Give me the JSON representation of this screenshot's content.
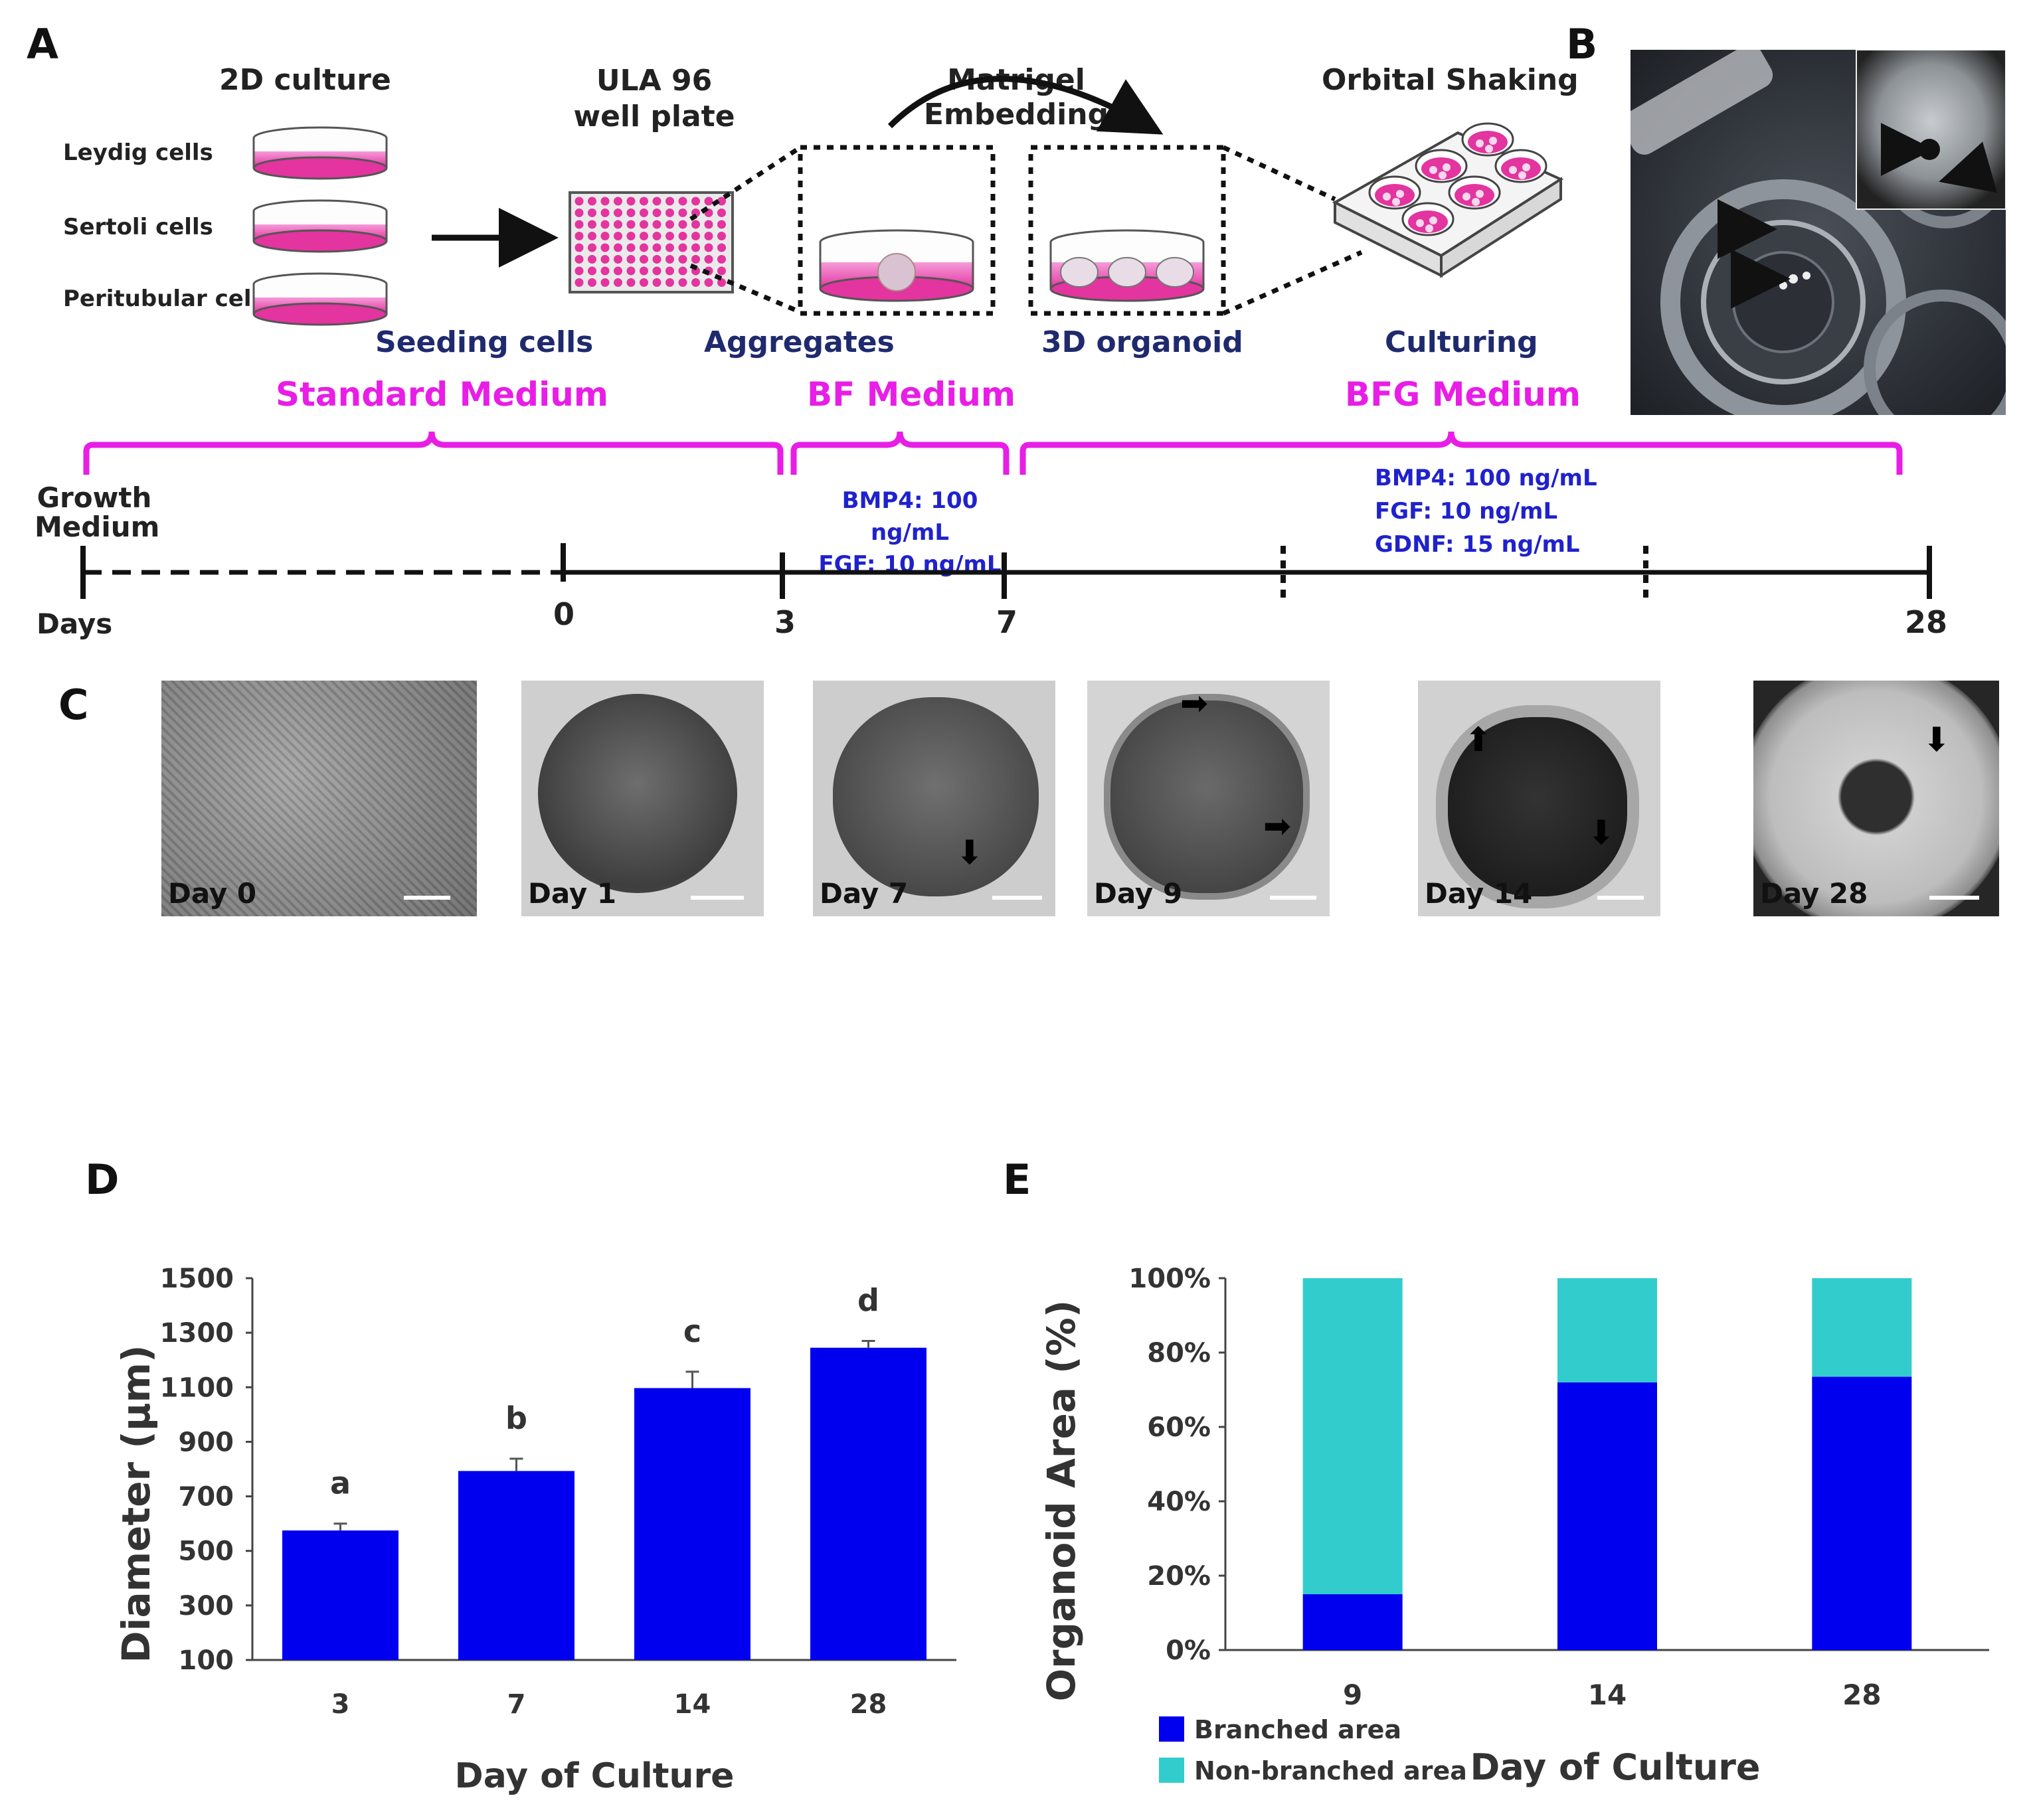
{
  "panels": {
    "a": "A",
    "b": "B",
    "c": "C",
    "d": "D",
    "e": "E"
  },
  "panel_a": {
    "culture_2d_title": "2D culture",
    "cells": [
      "Leydig cells",
      "Sertoli cells",
      "Peritubular cells"
    ],
    "plate_title": "ULA 96 well plate",
    "embedding_title": "Matrigel Embedding",
    "shaking_title": "Orbital Shaking",
    "stages": [
      "Seeding cells",
      "Aggregates",
      "3D organoid",
      "Culturing"
    ],
    "media": [
      "Standard Medium",
      "BF Medium",
      "BFG Medium"
    ],
    "bf_composition": [
      "BMP4: 100 ng/mL",
      "FGF: 10 ng/mL"
    ],
    "bfg_composition": [
      "BMP4: 100 ng/mL",
      "FGF: 10 ng/mL",
      "GDNF: 15 ng/mL"
    ],
    "growth_medium": "Growth Medium",
    "days_label": "Days",
    "day_ticks": [
      "0",
      "3",
      "7",
      "28"
    ]
  },
  "panel_c": {
    "days": [
      "Day 0",
      "Day 1",
      "Day 7",
      "Day 9",
      "Day 14",
      "Day 28"
    ]
  },
  "chart_data": [
    {
      "type": "bar",
      "categories": [
        "3",
        "7",
        "14",
        "28"
      ],
      "values": [
        575,
        793,
        1097,
        1245
      ],
      "errors": [
        25,
        45,
        60,
        25
      ],
      "letters": [
        "a",
        "b",
        "c",
        "d"
      ],
      "xlabel": "Day of Culture",
      "ylabel": "Diameter (μm)",
      "ylim": [
        100,
        1500
      ],
      "yticks": [
        "100",
        "300",
        "500",
        "700",
        "900",
        "1100",
        "1300",
        "1500"
      ],
      "color": "#0000ee"
    },
    {
      "type": "bar",
      "stacked": true,
      "categories": [
        "9",
        "14",
        "28"
      ],
      "series": [
        {
          "name": "Branched area",
          "values": [
            15,
            72,
            73.5
          ],
          "color": "#0000ee"
        },
        {
          "name": "Non-branched area",
          "values": [
            85,
            28,
            26.5
          ],
          "color": "#33cccc"
        }
      ],
      "xlabel": "Day of Culture",
      "ylabel": "Organoid Area (%)",
      "ylim": [
        0,
        100
      ],
      "yticks": [
        "0%",
        "20%",
        "40%",
        "60%",
        "80%",
        "100%"
      ]
    }
  ]
}
